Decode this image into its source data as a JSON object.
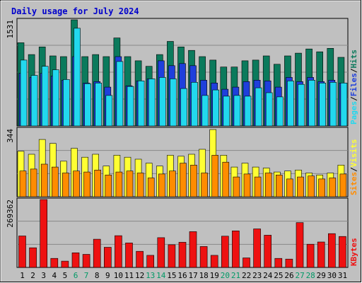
{
  "chart_data": {
    "type": "bar",
    "title": "Daily usage for July 2024",
    "categories": [
      "1",
      "2",
      "3",
      "4",
      "5",
      "6",
      "7",
      "8",
      "9",
      "10",
      "11",
      "12",
      "13",
      "14",
      "15",
      "16",
      "17",
      "18",
      "19",
      "20",
      "21",
      "22",
      "23",
      "24",
      "25",
      "26",
      "27",
      "28",
      "29",
      "30",
      "31"
    ],
    "weekend_days": [
      "6",
      "7",
      "13",
      "14",
      "20",
      "21",
      "27",
      "28"
    ],
    "colors": {
      "background": "#c0c0c0",
      "title": "#0000cc",
      "hits": "#0b7a5c",
      "files": "#1f3fdc",
      "pages": "#22d8ee",
      "visits": "#ffff33",
      "sites": "#ff8c00",
      "kbytes": "#ee1111",
      "weekend_label": "#009966",
      "weekday_label": "#000000"
    },
    "panels": [
      {
        "name": "hits-files-pages",
        "ymax_label": "1531",
        "ymax": 1531,
        "legend": [
          {
            "text": "Pages",
            "color": "#22d8ee"
          },
          {
            "text": "/",
            "color": "#000000"
          },
          {
            "text": "Files",
            "color": "#1f3fdc"
          },
          {
            "text": "/",
            "color": "#000000"
          },
          {
            "text": "Hits",
            "color": "#0b7a5c"
          }
        ],
        "series": [
          {
            "name": "Hits",
            "values": [
              1200,
              1030,
              1140,
              1010,
              1000,
              1531,
              1000,
              1030,
              1000,
              1270,
              1000,
              940,
              860,
              1030,
              1220,
              1140,
              1090,
              1000,
              950,
              850,
              850,
              940,
              950,
              1010,
              890,
              1010,
              1050,
              1110,
              1070,
              1120,
              990
            ]
          },
          {
            "name": "Files",
            "values": [
              760,
              700,
              760,
              720,
              660,
              1000,
              620,
              640,
              560,
              1000,
              580,
              650,
              680,
              940,
              870,
              900,
              870,
              660,
              620,
              530,
              560,
              640,
              660,
              650,
              560,
              700,
              640,
              700,
              640,
              660,
              620
            ]
          },
          {
            "name": "Pages",
            "values": [
              950,
              730,
              860,
              810,
              670,
              1410,
              610,
              620,
              440,
              930,
              570,
              650,
              680,
              700,
              680,
              540,
              630,
              440,
              520,
              430,
              440,
              430,
              550,
              480,
              420,
              650,
              600,
              660,
              620,
              630,
              620
            ]
          }
        ]
      },
      {
        "name": "visits-sites",
        "ymax_label": "344",
        "ymax": 344,
        "legend": [
          {
            "text": "Sites",
            "color": "#ff8c00"
          },
          {
            "text": "/",
            "color": "#000000"
          },
          {
            "text": "Visits",
            "color": "#ffff33"
          }
        ],
        "series": [
          {
            "name": "Visits",
            "values": [
              230,
              215,
              290,
              270,
              180,
              245,
              200,
              215,
              155,
              210,
              200,
              190,
              170,
              155,
              210,
              205,
              215,
              240,
              340,
              210,
              150,
              170,
              150,
              145,
              125,
              130,
              135,
              120,
              110,
              120,
              160
            ]
          },
          {
            "name": "Sites",
            "values": [
              130,
              140,
              165,
              150,
              120,
              130,
              125,
              135,
              110,
              125,
              130,
              120,
              95,
              115,
              130,
              170,
              160,
              120,
              210,
              175,
              100,
              115,
              100,
              120,
              110,
              90,
              100,
              105,
              90,
              95,
              115
            ]
          }
        ]
      },
      {
        "name": "kbytes",
        "ymax_label": "269362",
        "ymax": 269362,
        "legend": [
          {
            "text": "KBytes",
            "color": "#ee1111"
          }
        ],
        "series": [
          {
            "name": "KBytes",
            "values": [
              125000,
              78000,
              269362,
              36000,
              25000,
              58000,
              52000,
              112000,
              80000,
              126000,
              97000,
              64000,
              48000,
              118000,
              90000,
              100000,
              142000,
              83000,
              48000,
              124000,
              145000,
              38000,
              153000,
              128000,
              36000,
              33000,
              178000,
              92000,
              101000,
              134000,
              123000
            ]
          }
        ]
      }
    ]
  }
}
